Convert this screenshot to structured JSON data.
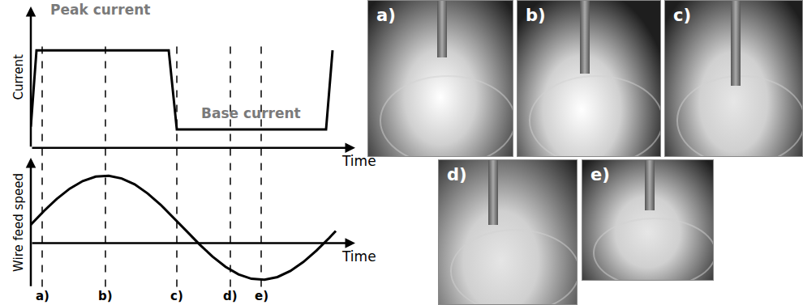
{
  "chart_data": [
    {
      "type": "line",
      "ylabel": "Current",
      "xlabel": "Time",
      "x": [
        0,
        1.75,
        42.5,
        45,
        91,
        93
      ],
      "values": [
        15,
        69,
        69,
        13,
        13,
        69
      ],
      "xlim": [
        0,
        100
      ],
      "ylim": [
        0,
        100
      ],
      "tick_labels": false,
      "grid": false,
      "color": "#000000",
      "annotations": [
        "Peak current",
        "Base current"
      ]
    },
    {
      "type": "line",
      "ylabel": "Wire feed speed",
      "xlabel": "Time",
      "x": [
        0,
        4,
        8,
        12,
        16,
        20,
        24,
        28,
        32,
        36,
        40,
        44,
        48,
        52,
        56,
        60,
        64,
        68,
        72,
        76,
        80,
        84,
        88,
        92,
        94
      ],
      "values": [
        13,
        22.5,
        31.1,
        38.3,
        43.6,
        46.7,
        47.3,
        45.4,
        41.3,
        34.9,
        27,
        18,
        8.5,
        -0.9,
        -9.4,
        -16.6,
        -21.9,
        -25,
        -25.6,
        -23.8,
        -19.5,
        -13.2,
        -5.3,
        3.7,
        8.5
      ],
      "xlim": [
        0,
        100
      ],
      "ylim": [
        -31,
        60
      ],
      "tick_labels": false,
      "grid": false,
      "color": "#000000",
      "time_marks": {
        "x": [
          3.5,
          23,
          45,
          61.5,
          71
        ],
        "labels": [
          "a)",
          "b)",
          "c)",
          "d)",
          "e)"
        ]
      }
    }
  ],
  "photos": {
    "labels": [
      "a)",
      "b)",
      "c)",
      "d)",
      "e)"
    ]
  }
}
